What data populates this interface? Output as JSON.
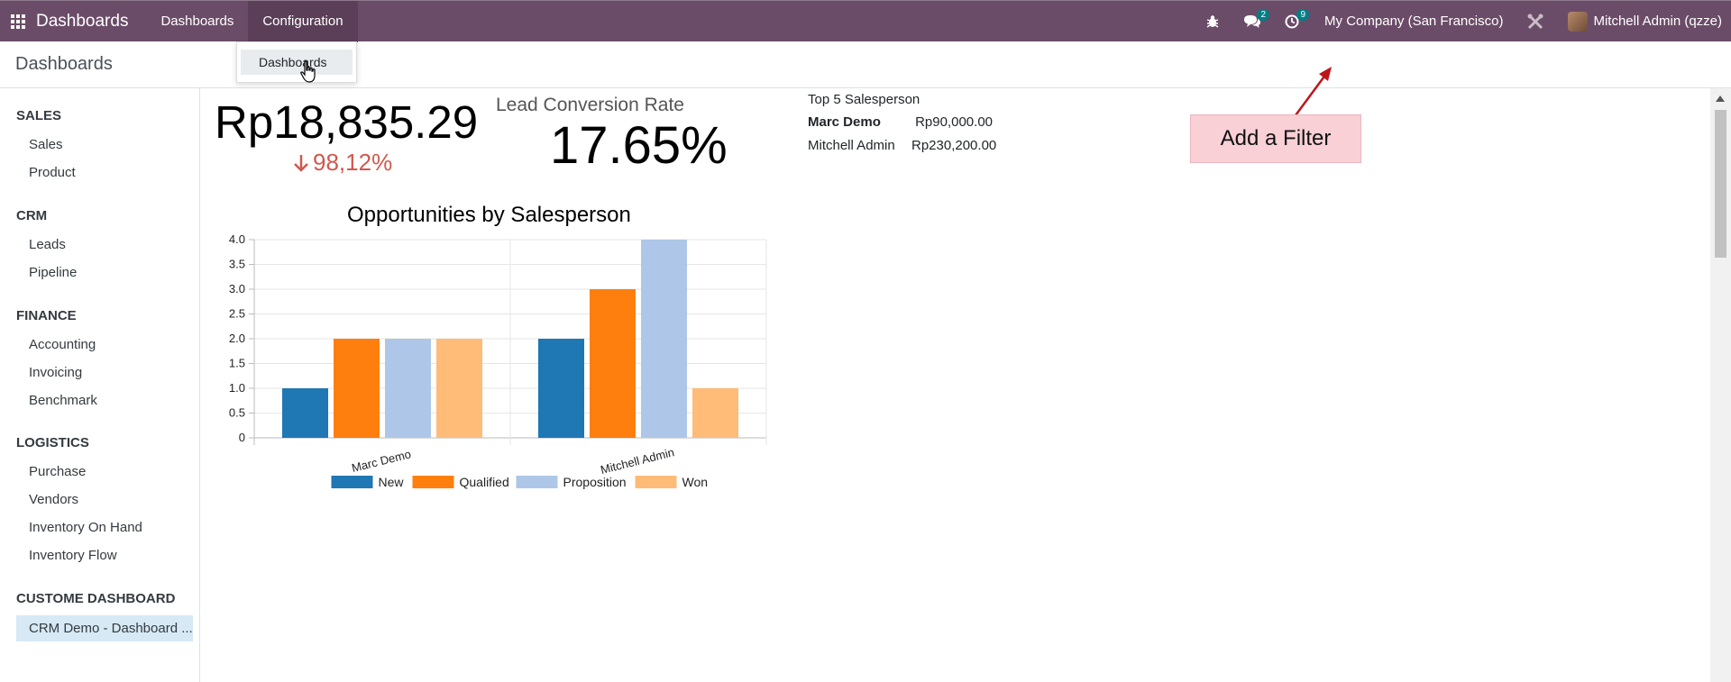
{
  "navbar": {
    "brand": "Dashboards",
    "menus": [
      {
        "label": "Dashboards"
      },
      {
        "label": "Configuration"
      }
    ],
    "messages_count": "2",
    "activities_count": "9",
    "company": "My Company (San Francisco)",
    "user": "Mitchell Admin (qzze)"
  },
  "dropdown": {
    "items": [
      {
        "label": "Dashboards"
      }
    ]
  },
  "breadcrumb": "Dashboards",
  "sidebar": {
    "sections": [
      {
        "title": "SALES",
        "items": [
          {
            "label": "Sales"
          },
          {
            "label": "Product"
          }
        ]
      },
      {
        "title": "CRM",
        "items": [
          {
            "label": "Leads"
          },
          {
            "label": "Pipeline"
          }
        ]
      },
      {
        "title": "FINANCE",
        "items": [
          {
            "label": "Accounting"
          },
          {
            "label": "Invoicing"
          },
          {
            "label": "Benchmark"
          }
        ]
      },
      {
        "title": "LOGISTICS",
        "items": [
          {
            "label": "Purchase"
          },
          {
            "label": "Vendors"
          },
          {
            "label": "Inventory On Hand"
          },
          {
            "label": "Inventory Flow"
          }
        ]
      },
      {
        "title": "CUSTOME DASHBOARD",
        "items": [
          {
            "label": "CRM Demo - Dashboard ..."
          }
        ]
      }
    ]
  },
  "kpi": {
    "amount": "Rp18,835.29",
    "change": "98,12%"
  },
  "lead_conversion": {
    "label": "Lead Conversion Rate",
    "value": "17.65%"
  },
  "top5": {
    "title": "Top 5 Salesperson",
    "rows": [
      {
        "name": "Marc Demo",
        "amount": "Rp90,000.00"
      },
      {
        "name": "Mitchell Admin",
        "amount": "Rp230,200.00"
      }
    ]
  },
  "chart_data": {
    "type": "bar",
    "title": "Opportunities by Salesperson",
    "categories": [
      "Marc Demo",
      "Mitchell Admin"
    ],
    "series": [
      {
        "name": "New",
        "color": "#1f77b4",
        "values": [
          1,
          2
        ]
      },
      {
        "name": "Qualified",
        "color": "#ff7f0e",
        "values": [
          2,
          3
        ]
      },
      {
        "name": "Proposition",
        "color": "#aec7e8",
        "values": [
          2,
          4
        ]
      },
      {
        "name": "Won",
        "color": "#ffbb78",
        "values": [
          2,
          1
        ]
      }
    ],
    "yticks": [
      "0",
      "0.5",
      "1.0",
      "1.5",
      "2.0",
      "2.5",
      "3.0",
      "3.5",
      "4.0"
    ],
    "ylim": [
      0,
      4
    ],
    "grid": true,
    "legend": "bottom"
  },
  "callout": {
    "text": "Add a Filter"
  }
}
